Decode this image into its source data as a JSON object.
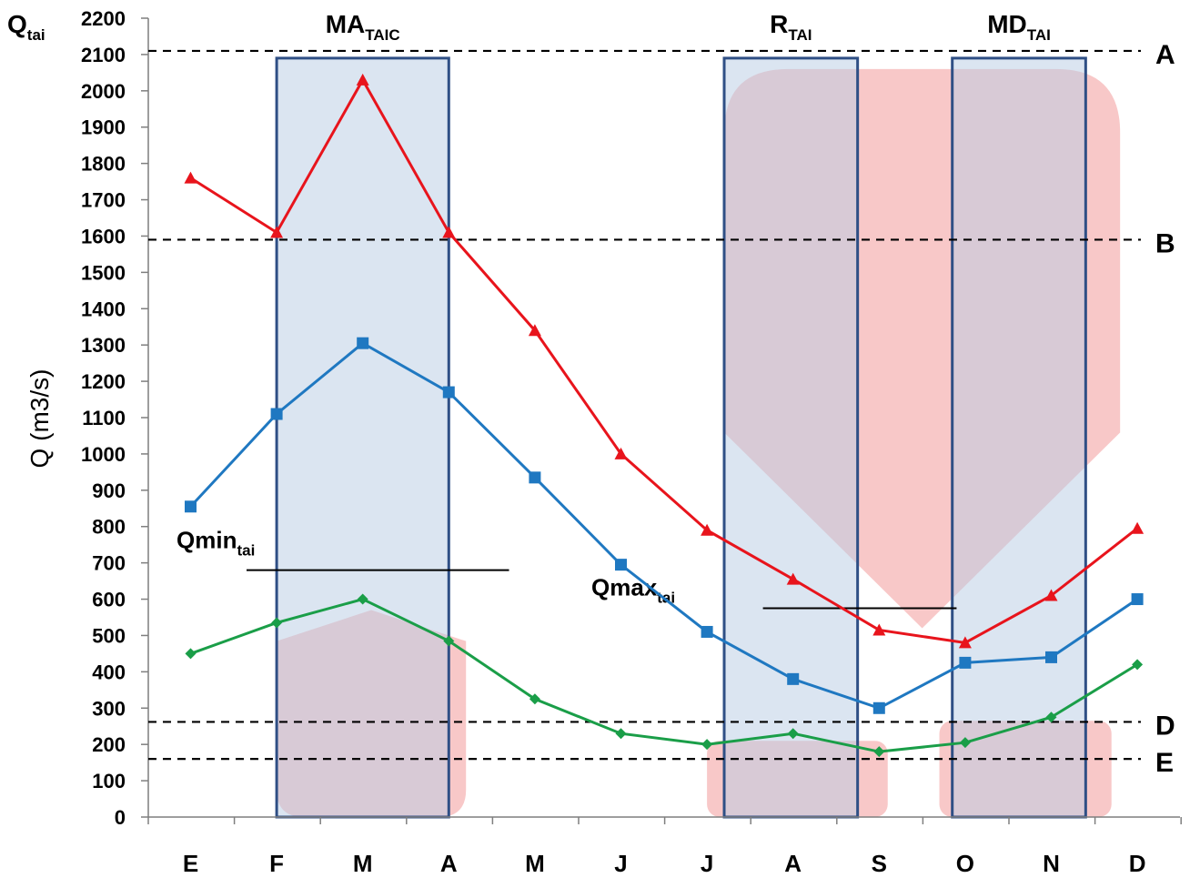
{
  "chart_data": {
    "type": "line",
    "categories": [
      "E",
      "F",
      "M",
      "A",
      "M",
      "J",
      "J",
      "A",
      "S",
      "O",
      "N",
      "D"
    ],
    "series": [
      {
        "name": "",
        "color": "#e8141c",
        "marker": "triangle",
        "values": [
          1760,
          1610,
          2030,
          1610,
          1340,
          1000,
          790,
          655,
          515,
          480,
          610,
          795
        ]
      },
      {
        "name": "",
        "color": "#1f78c1",
        "marker": "square",
        "values": [
          855,
          1110,
          1305,
          1170,
          935,
          695,
          510,
          380,
          300,
          425,
          440,
          600
        ]
      },
      {
        "name": "",
        "color": "#1a9e48",
        "marker": "diamond",
        "values": [
          450,
          535,
          600,
          485,
          325,
          230,
          200,
          230,
          180,
          205,
          275,
          420
        ]
      }
    ],
    "ylim": [
      0,
      2200
    ],
    "yticks": [
      0,
      100,
      200,
      300,
      400,
      500,
      600,
      700,
      800,
      900,
      1000,
      1100,
      1200,
      1300,
      1400,
      1500,
      1600,
      1700,
      1800,
      1900,
      2000,
      2100,
      2200
    ],
    "ylabel": "Q (m3/s)",
    "y_top_label": {
      "main": "Q",
      "sub": "tai"
    },
    "grid": false,
    "thresholds": [
      {
        "label": "A",
        "value": 2110
      },
      {
        "label": "B",
        "value": 1590
      },
      {
        "label": "D",
        "value": 262
      },
      {
        "label": "E",
        "value": 160
      }
    ],
    "flow_lines": [
      {
        "main": "Qmin",
        "sub": "tai",
        "value": 680,
        "from": 0.65,
        "to": 3.7
      },
      {
        "main": "Qmax",
        "sub": "tai",
        "value": 575,
        "from": 6.65,
        "to": 8.9
      }
    ],
    "periods": [
      {
        "main": "MA",
        "sub": "TAIC",
        "from": 1,
        "to": 3
      },
      {
        "main": "R",
        "sub": "TAI",
        "from": 6.2,
        "to": 7.75
      },
      {
        "main": "MD",
        "sub": "TAI",
        "from": 8.85,
        "to": 10.4
      }
    ],
    "shaded_regions": [
      {
        "shape": "pentagon-down",
        "x": [
          6.2,
          10.8
        ],
        "y": [
          520,
          2060
        ]
      },
      {
        "shape": "pentagon-up",
        "x": [
          1,
          3.2
        ],
        "y": [
          0,
          570
        ]
      },
      {
        "shape": "rect",
        "x": [
          6,
          8.1
        ],
        "y": [
          0,
          210
        ]
      },
      {
        "shape": "rect",
        "x": [
          8.7,
          10.7
        ],
        "y": [
          0,
          265
        ]
      }
    ]
  }
}
